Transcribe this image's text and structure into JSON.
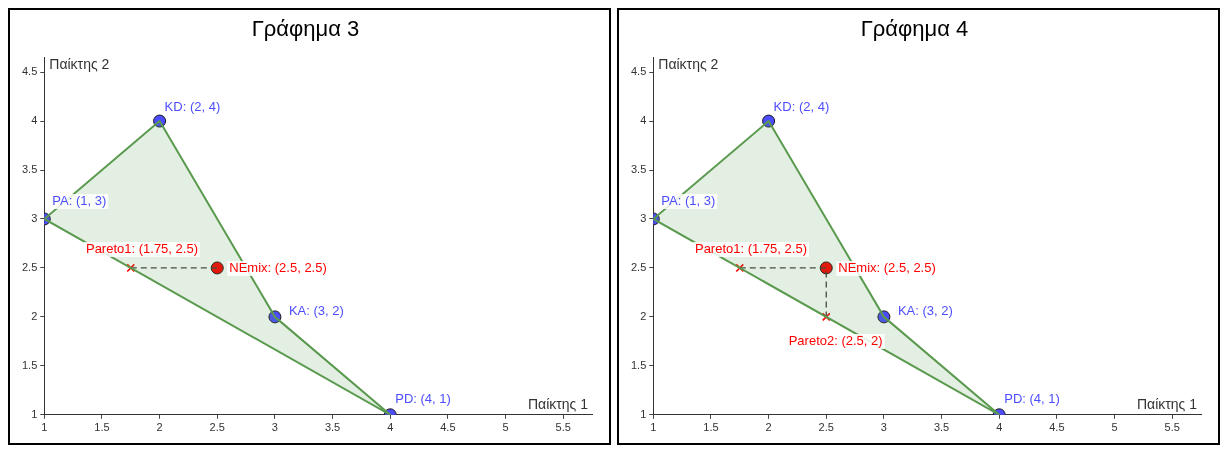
{
  "chart_data": [
    {
      "type": "scatter",
      "title": "Γράφημα 3",
      "xlabel": "Παίκτης 1",
      "ylabel": "Παίκτης 2",
      "xlim": [
        1,
        5.75
      ],
      "ylim": [
        1,
        4.65
      ],
      "xticks": [
        1,
        1.5,
        2,
        2.5,
        3,
        3.5,
        4,
        4.5,
        5,
        5.5
      ],
      "yticks": [
        1,
        1.5,
        2,
        2.5,
        3,
        3.5,
        4,
        4.5
      ],
      "legend": false,
      "series": [
        {
          "type": "area",
          "color": "#5a9a4e",
          "x": [
            1,
            2,
            3,
            4,
            1
          ],
          "values": [
            3,
            4,
            2,
            1,
            3
          ],
          "marker": "none"
        },
        {
          "type": "line",
          "color": "#404040",
          "x": [
            1.75,
            2.5
          ],
          "values": [
            2.5,
            2.5
          ],
          "marker": "none",
          "line_style": "dashed"
        },
        {
          "type": "scatter",
          "color": "#4d4dff",
          "x": [
            1,
            2,
            3,
            4
          ],
          "values": [
            3,
            4,
            2,
            1
          ],
          "marker": "circle",
          "value_labels": [
            "PA: (1, 3)",
            "KD: (2, 4)",
            "KA: (3, 2)",
            "PD: (4, 1)"
          ]
        },
        {
          "type": "scatter",
          "color": "#ff0000",
          "x": [
            2.5
          ],
          "values": [
            2.5
          ],
          "marker": "circle",
          "value_labels": [
            "NEmix: (2.5, 2.5)"
          ]
        },
        {
          "type": "scatter",
          "color": "#ff0000",
          "x": [
            1.75
          ],
          "values": [
            2.5
          ],
          "marker": "cross",
          "value_labels": [
            "Pareto1: (1.75, 2.5)"
          ]
        }
      ]
    },
    {
      "type": "scatter",
      "title": "Γράφημα 4",
      "xlabel": "Παίκτης 1",
      "ylabel": "Παίκτης 2",
      "xlim": [
        1,
        5.75
      ],
      "ylim": [
        1,
        4.65
      ],
      "xticks": [
        1,
        1.5,
        2,
        2.5,
        3,
        3.5,
        4,
        4.5,
        5,
        5.5
      ],
      "yticks": [
        1,
        1.5,
        2,
        2.5,
        3,
        3.5,
        4,
        4.5
      ],
      "legend": false,
      "series": [
        {
          "type": "area",
          "color": "#5a9a4e",
          "x": [
            1,
            2,
            3,
            4,
            1
          ],
          "values": [
            3,
            4,
            2,
            1,
            3
          ],
          "marker": "none"
        },
        {
          "type": "line",
          "color": "#404040",
          "x": [
            1.75,
            2.5,
            2.5
          ],
          "values": [
            2.5,
            2.5,
            2
          ],
          "marker": "none",
          "line_style": "dashed"
        },
        {
          "type": "scatter",
          "color": "#4d4dff",
          "x": [
            1,
            2,
            3,
            4
          ],
          "values": [
            3,
            4,
            2,
            1
          ],
          "marker": "circle",
          "value_labels": [
            "PA: (1, 3)",
            "KD: (2, 4)",
            "KA: (3, 2)",
            "PD: (4, 1)"
          ]
        },
        {
          "type": "scatter",
          "color": "#ff0000",
          "x": [
            2.5
          ],
          "values": [
            2.5
          ],
          "marker": "circle",
          "value_labels": [
            "NEmix: (2.5, 2.5)"
          ]
        },
        {
          "type": "scatter",
          "color": "#ff0000",
          "x": [
            1.75,
            2.5
          ],
          "values": [
            2.5,
            2
          ],
          "marker": "cross",
          "value_labels": [
            "Pareto1: (1.75, 2.5)",
            "Pareto2: (2.5, 2)"
          ]
        }
      ]
    }
  ]
}
